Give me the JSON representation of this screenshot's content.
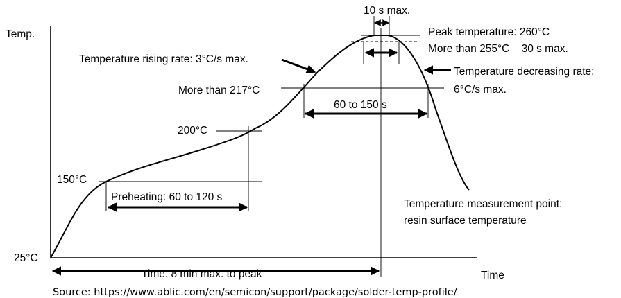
{
  "axes": {
    "y_label": "Temp.",
    "x_label": "Time",
    "origin_label": "25°C"
  },
  "levels": {
    "t150": "150°C",
    "t200": "200°C",
    "t217": "More than 217°C"
  },
  "annotations": {
    "rising_rate": "Temperature rising rate: 3°C/s max.",
    "ten_s": "10 s max.",
    "peak": "Peak temperature: 260°C",
    "above255": "More than 255°C    30 s max.",
    "decreasing_line1": "Temperature decreasing rate:",
    "decreasing_line2": "6°C/s max.",
    "span_60_150": "60 to 150 s",
    "preheat": "Preheating: 60 to 120 s",
    "measure_line1": "Temperature measurement point:",
    "measure_line2": "resin surface temperature",
    "time_to_peak": "Time: 8 min max. to peak"
  },
  "source": "Source: https://www.ablic.com/en/semicon/support/package/solder-temp-profile/"
}
